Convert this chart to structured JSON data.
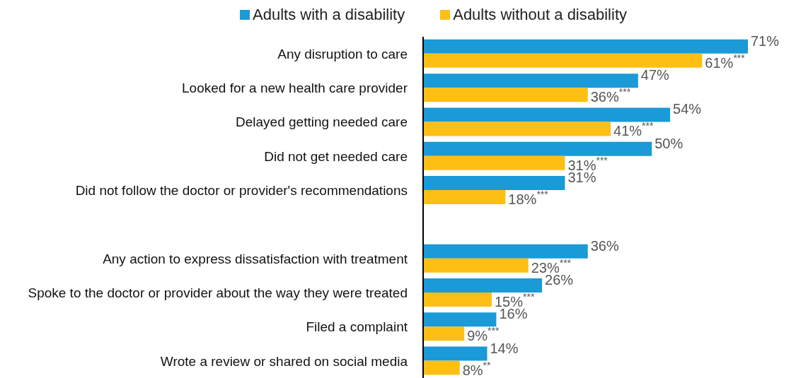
{
  "chart_data": {
    "type": "bar",
    "orientation": "horizontal",
    "legend": "top",
    "categories": [
      "Any disruption to care",
      "Looked for a new health care provider",
      "Delayed getting needed care",
      "Did not get needed care",
      "Did not follow the doctor or provider's recommendations",
      null,
      "Any action to express dissatisfaction with treatment",
      "Spoke to the doctor or provider about the way they were treated",
      "Filed a complaint",
      "Wrote a review or shared on social media"
    ],
    "series": [
      {
        "name": "Adults with a disability",
        "color": "#1a9ad6",
        "values": [
          71,
          47,
          54,
          50,
          31,
          null,
          36,
          26,
          16,
          14
        ],
        "value_labels": [
          "71%",
          "47%",
          "54%",
          "50%",
          "31%",
          null,
          "36%",
          "26%",
          "16%",
          "14%"
        ]
      },
      {
        "name": "Adults without a disability",
        "color": "#fdbf14",
        "values": [
          61,
          36,
          41,
          31,
          18,
          null,
          23,
          15,
          9,
          8
        ],
        "value_labels": [
          "61%$^{***}$",
          "36%$^{***}$",
          "41%$^{***}$",
          "31%$^{***}$",
          "18%$^{***}$",
          null,
          "23%$^{***}$",
          "15%$^{***}$",
          "9%$^{***}$",
          "8%$^{**}$"
        ]
      }
    ]
  }
}
